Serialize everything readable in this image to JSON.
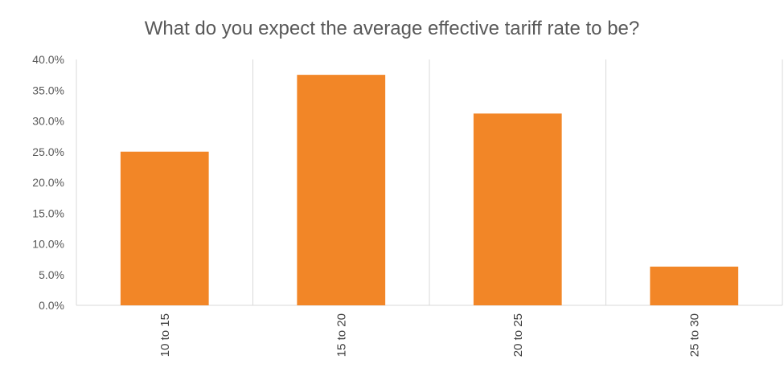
{
  "chart_data": {
    "type": "bar",
    "title": "What do you expect the average effective tariff rate to be?",
    "categories": [
      "10 to 15",
      "15 to 20",
      "20 to 25",
      "25 to 30"
    ],
    "values": [
      25.0,
      37.5,
      31.2,
      6.3
    ],
    "ylim": [
      0,
      40
    ],
    "yticks": [
      "0.0%",
      "5.0%",
      "10.0%",
      "15.0%",
      "20.0%",
      "25.0%",
      "30.0%",
      "35.0%",
      "40.0%"
    ],
    "xlabel": "",
    "ylabel": "",
    "grid": "vertical category separators",
    "legend": "none",
    "colors": {
      "bar": "#F28627",
      "grid": "#D9D9D9",
      "text": "#595959"
    }
  }
}
